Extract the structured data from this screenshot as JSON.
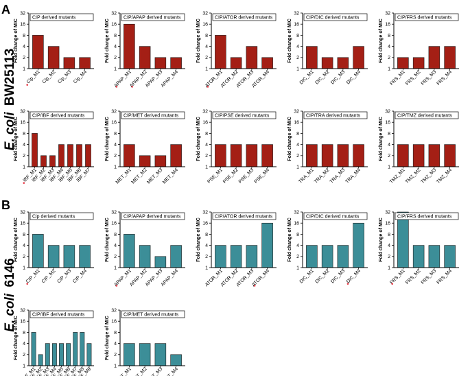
{
  "panels": [
    {
      "label": "A",
      "strain_species": "E. coli",
      "strain_name": "BW25113"
    },
    {
      "label": "B",
      "strain_species": "E. coli",
      "strain_name": "6146"
    }
  ],
  "colors": {
    "A": "#a41f15",
    "B": "#3c8e98",
    "marker": "#e63946"
  },
  "chart_data": [
    {
      "type": "bar",
      "panel": "A",
      "title": "CIP derived mutants",
      "ylabel": "Fold change of MIC",
      "yscale": "log2",
      "ylim": [
        1,
        32
      ],
      "yticks": [
        "1",
        "2",
        "4",
        "8",
        "16",
        "32"
      ],
      "categories": [
        "Cip_M1",
        "Cip_M2",
        "Cip_M3",
        "Cip_M4"
      ],
      "values": [
        8,
        4,
        2,
        2
      ],
      "marked": [
        0
      ]
    },
    {
      "type": "bar",
      "panel": "A",
      "title": "CIP/APAP derived mutants",
      "ylabel": "Fold change of MIC",
      "yscale": "log2",
      "ylim": [
        1,
        32
      ],
      "yticks": [
        "1",
        "2",
        "4",
        "8",
        "16",
        "32"
      ],
      "categories": [
        "APAP_M1",
        "APAP_M2",
        "APAP_M3",
        "APAP_M4"
      ],
      "values": [
        16,
        4,
        2,
        2
      ],
      "marked": [
        0,
        1
      ]
    },
    {
      "type": "bar",
      "panel": "A",
      "title": "CIP/ATOR derived mutants",
      "ylabel": "Fold change of MIC",
      "yscale": "log2",
      "ylim": [
        1,
        32
      ],
      "yticks": [
        "1",
        "2",
        "4",
        "8",
        "16",
        "32"
      ],
      "categories": [
        "ATOR_M1",
        "ATOR_M2",
        "ATOR_M3",
        "ATOR_M4"
      ],
      "values": [
        8,
        2,
        4,
        2
      ],
      "marked": [
        0
      ]
    },
    {
      "type": "bar",
      "panel": "A",
      "title": "CIP/DIC derived mutants",
      "ylabel": "Fold change of MIC",
      "yscale": "log2",
      "ylim": [
        1,
        32
      ],
      "yticks": [
        "1",
        "2",
        "4",
        "8",
        "16",
        "32"
      ],
      "categories": [
        "DIC_M1",
        "DIC_M2",
        "DIC_M3",
        "DIC_M4"
      ],
      "values": [
        4,
        2,
        2,
        4
      ],
      "marked": []
    },
    {
      "type": "bar",
      "panel": "A",
      "title": "CIP/FRS derived mutants",
      "ylabel": "Fold change of MIC",
      "yscale": "log2",
      "ylim": [
        1,
        32
      ],
      "yticks": [
        "1",
        "2",
        "4",
        "8",
        "16",
        "32"
      ],
      "categories": [
        "FRS_M1",
        "FRS_M2",
        "FRS_M3",
        "FRS_M4"
      ],
      "values": [
        2,
        2,
        4,
        4
      ],
      "marked": []
    },
    {
      "type": "bar",
      "panel": "A",
      "title": "CIP/IBF derived mutants",
      "ylabel": "Fold change of MIC",
      "yscale": "log2",
      "ylim": [
        1,
        32
      ],
      "yticks": [
        "1",
        "2",
        "4",
        "8",
        "16",
        "32"
      ],
      "categories": [
        "IBF_M1",
        "IBF_M2",
        "IBF_M3",
        "IBF_M4",
        "IBF_M5",
        "IBF_M6",
        "IBF_M7"
      ],
      "values": [
        8,
        2,
        2,
        4,
        4,
        4,
        4
      ],
      "marked": [
        0
      ]
    },
    {
      "type": "bar",
      "panel": "A",
      "title": "CIP/MET derived mutants",
      "ylabel": "Fold change of MIC",
      "yscale": "log2",
      "ylim": [
        1,
        32
      ],
      "yticks": [
        "1",
        "2",
        "4",
        "8",
        "16",
        "32"
      ],
      "categories": [
        "MET_M1",
        "MET_M2",
        "MET_M3",
        "MET_M4"
      ],
      "values": [
        4,
        2,
        2,
        4
      ],
      "marked": []
    },
    {
      "type": "bar",
      "panel": "A",
      "title": "CIP/PSE derived mutants",
      "ylabel": "Fold change of MIC",
      "yscale": "log2",
      "ylim": [
        1,
        32
      ],
      "yticks": [
        "1",
        "2",
        "4",
        "8",
        "16",
        "32"
      ],
      "categories": [
        "PSE_M1",
        "PSE_M2",
        "PSE_M3",
        "PSE_M4"
      ],
      "values": [
        4,
        4,
        4,
        4
      ],
      "marked": []
    },
    {
      "type": "bar",
      "panel": "A",
      "title": "CIP/TRA derived mutants",
      "ylabel": "Fold change of MIC",
      "yscale": "log2",
      "ylim": [
        1,
        32
      ],
      "yticks": [
        "1",
        "2",
        "4",
        "8",
        "16",
        "32"
      ],
      "categories": [
        "TRA_M1",
        "TRA_M2",
        "TRA_M3",
        "TRA_M4"
      ],
      "values": [
        4,
        4,
        4,
        4
      ],
      "marked": []
    },
    {
      "type": "bar",
      "panel": "A",
      "title": "CIP/TMZ derived mutants",
      "ylabel": "Fold change of MIC",
      "yscale": "log2",
      "ylim": [
        1,
        32
      ],
      "yticks": [
        "1",
        "2",
        "4",
        "8",
        "16",
        "32"
      ],
      "categories": [
        "TMZ_M1",
        "TMZ_M2",
        "TMZ_M3",
        "TMZ_M4"
      ],
      "values": [
        4,
        4,
        4,
        4
      ],
      "marked": []
    },
    {
      "type": "bar",
      "panel": "B",
      "title": "Cip derived mutants",
      "ylabel": "Fold change of MIC",
      "yscale": "log2",
      "ylim": [
        1,
        32
      ],
      "yticks": [
        "1",
        "2",
        "4",
        "8",
        "16",
        "32"
      ],
      "categories": [
        "CIP_M1",
        "CIP_M2",
        "CIP_M3",
        "CIP_M4"
      ],
      "values": [
        8,
        4,
        4,
        4
      ],
      "marked": [
        0
      ]
    },
    {
      "type": "bar",
      "panel": "B",
      "title": "CIP/APAP derived mutants",
      "ylabel": "Fold change of MIC",
      "yscale": "log2",
      "ylim": [
        1,
        32
      ],
      "yticks": [
        "1",
        "2",
        "4",
        "8",
        "16",
        "32"
      ],
      "categories": [
        "APAP_M1",
        "APAP_M2",
        "APAP_M3",
        "APAP_M4"
      ],
      "values": [
        8,
        4,
        2,
        4
      ],
      "marked": [
        0
      ]
    },
    {
      "type": "bar",
      "panel": "B",
      "title": "CIP/ATOR derived mutants",
      "ylabel": "Fold change of MIC",
      "yscale": "log2",
      "ylim": [
        1,
        32
      ],
      "yticks": [
        "1",
        "2",
        "4",
        "8",
        "16",
        "32"
      ],
      "categories": [
        "ATOR_M1",
        "ATOR_M2",
        "ATOR_M3",
        "ATOR_M4"
      ],
      "values": [
        4,
        4,
        4,
        16
      ],
      "marked": [
        3
      ]
    },
    {
      "type": "bar",
      "panel": "B",
      "title": "CIP/DIC derived mutants",
      "ylabel": "Fold change of MIC",
      "yscale": "log2",
      "ylim": [
        1,
        32
      ],
      "yticks": [
        "1",
        "2",
        "4",
        "8",
        "16",
        "32"
      ],
      "categories": [
        "DIC_M1",
        "DIC_M2",
        "DIC_M3",
        "DIC_M4"
      ],
      "values": [
        4,
        4,
        4,
        16
      ],
      "marked": [
        3
      ]
    },
    {
      "type": "bar",
      "panel": "B",
      "title": "CIP/FRS derived mutants",
      "ylabel": "Fold change of MIC",
      "yscale": "log2",
      "ylim": [
        1,
        32
      ],
      "yticks": [
        "1",
        "2",
        "4",
        "8",
        "16",
        "32"
      ],
      "categories": [
        "FRS_M1",
        "FRS_M2",
        "FRS_M3",
        "FRS_M4"
      ],
      "values": [
        32,
        4,
        4,
        4
      ],
      "marked": [
        0
      ]
    },
    {
      "type": "bar",
      "panel": "B",
      "title": "CIP/IBF derived mutants",
      "ylabel": "Fold change of MIC",
      "yscale": "log2",
      "ylim": [
        1,
        32
      ],
      "yticks": [
        "1",
        "2",
        "4",
        "8",
        "16",
        "32"
      ],
      "categories": [
        "IBF_M1",
        "IBF_M2",
        "IBF_M3",
        "IBF_M4",
        "IBF_M5",
        "IBF_M6",
        "IBF_M7",
        "IBF_M8",
        "IBF_M9"
      ],
      "values": [
        8,
        2,
        4,
        4,
        4,
        4,
        8,
        8,
        4
      ],
      "marked": [
        0
      ]
    },
    {
      "type": "bar",
      "panel": "B",
      "title": "CIP/MET derived mutants",
      "ylabel": "Fold change of MIC",
      "yscale": "log2",
      "ylim": [
        1,
        32
      ],
      "yticks": [
        "1",
        "2",
        "4",
        "8",
        "16",
        "32"
      ],
      "categories": [
        "MET_M1",
        "MET_M2",
        "MET_M3",
        "MET_M4"
      ],
      "values": [
        4,
        4,
        4,
        2
      ],
      "marked": []
    }
  ]
}
